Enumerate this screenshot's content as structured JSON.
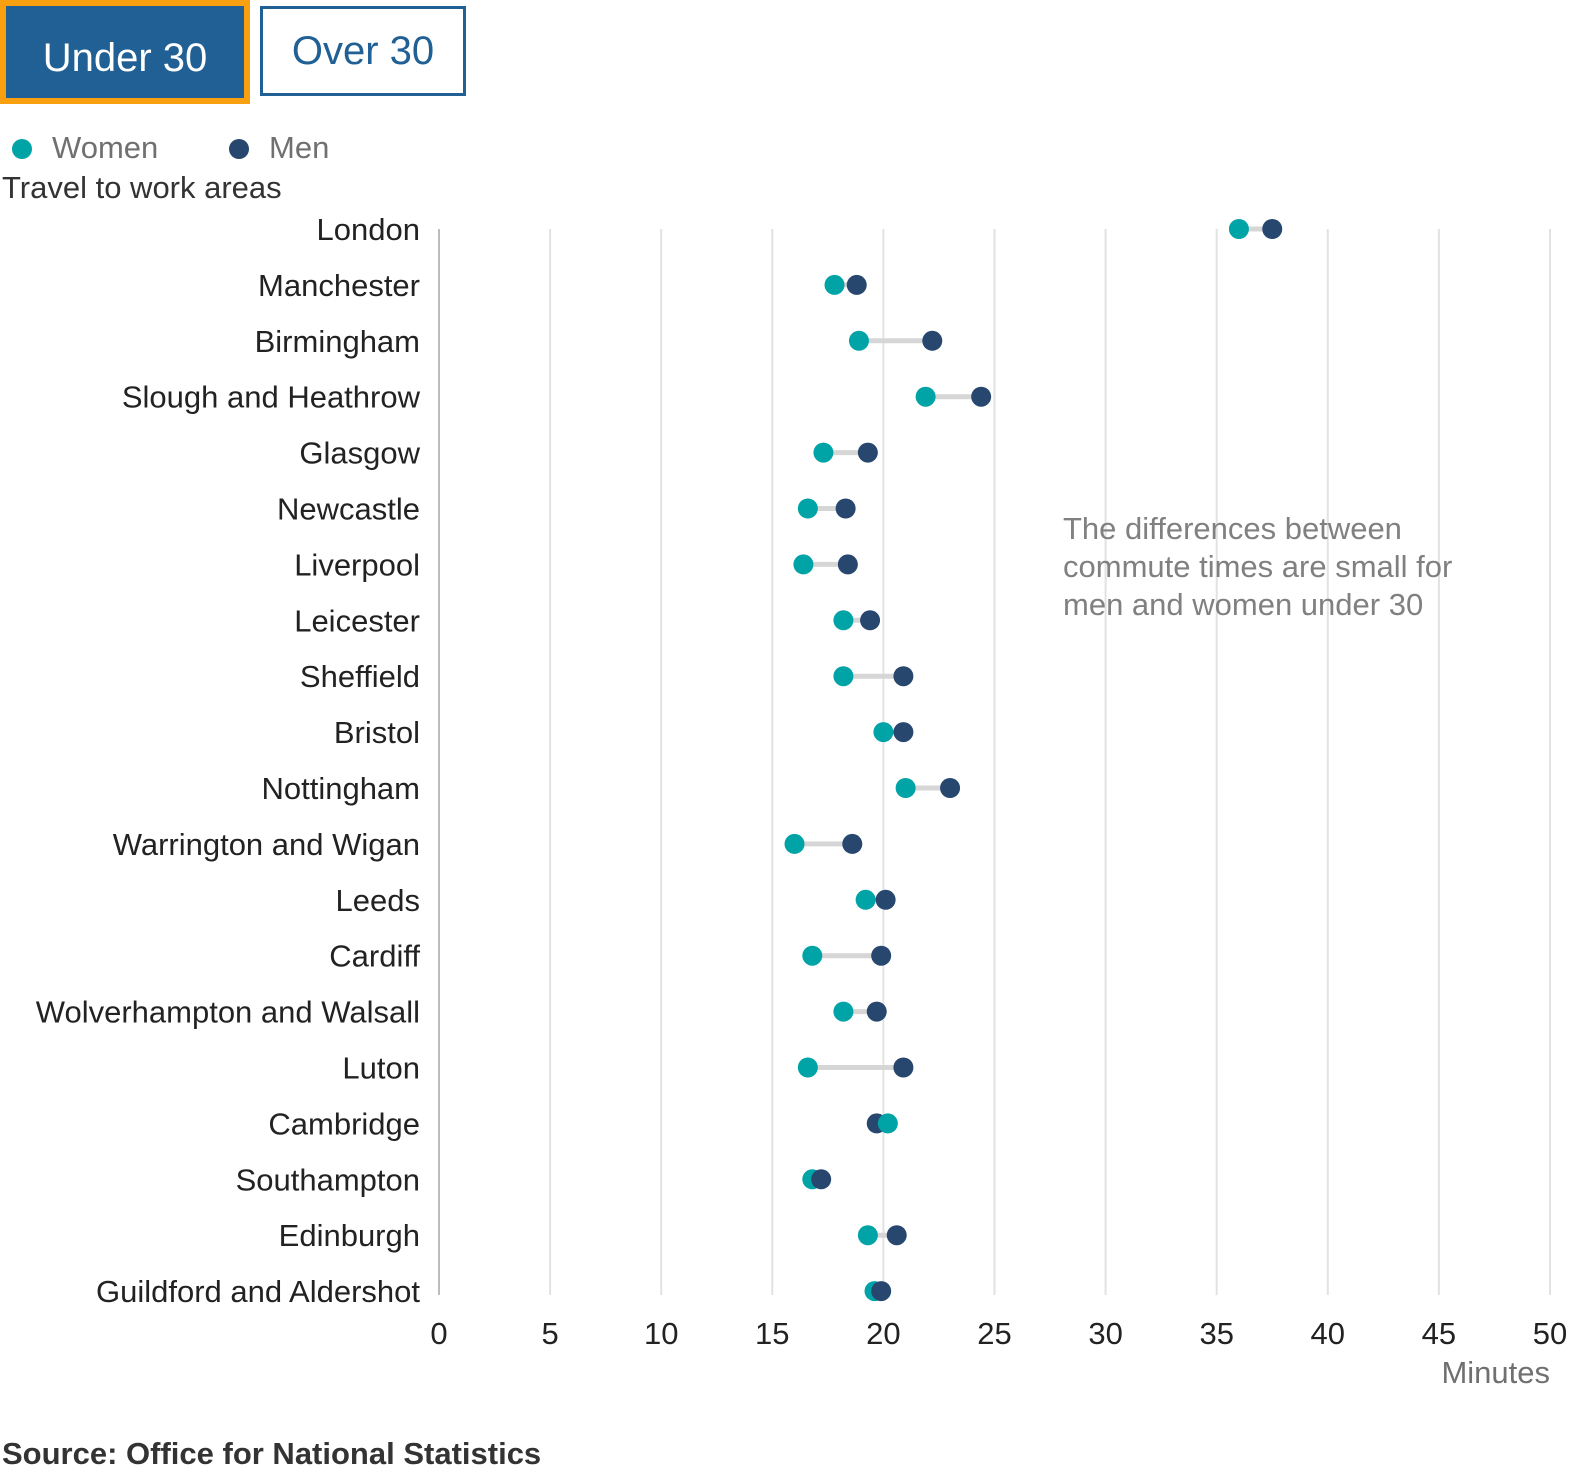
{
  "tabs": [
    {
      "label": "Under 30",
      "active": true
    },
    {
      "label": "Over 30",
      "active": false
    }
  ],
  "legend": [
    {
      "label": "Women",
      "color": "#00a3a6"
    },
    {
      "label": "Men",
      "color": "#27476e"
    }
  ],
  "annotation": [
    "The differences between",
    "commute times are small for",
    "men and women under 30"
  ],
  "source": "Source: Office for National Statistics",
  "chart_data": {
    "type": "dumbbell",
    "ylabel": "Travel to work areas",
    "xlabel": "Minutes",
    "xlim": [
      0,
      50
    ],
    "xticks": [
      0,
      5,
      10,
      15,
      20,
      25,
      30,
      35,
      40,
      45,
      50
    ],
    "grid": true,
    "legend_position": "top-left",
    "categories": [
      "London",
      "Manchester",
      "Birmingham",
      "Slough and Heathrow",
      "Glasgow",
      "Newcastle",
      "Liverpool",
      "Leicester",
      "Sheffield",
      "Bristol",
      "Nottingham",
      "Warrington and Wigan",
      "Leeds",
      "Cardiff",
      "Wolverhampton and Walsall",
      "Luton",
      "Cambridge",
      "Southampton",
      "Edinburgh",
      "Guildford and Aldershot"
    ],
    "series": [
      {
        "name": "Women",
        "color": "#00a3a6",
        "values": [
          36.0,
          17.8,
          18.9,
          21.9,
          17.3,
          16.6,
          16.4,
          18.2,
          18.2,
          20.0,
          21.0,
          16.0,
          19.2,
          16.8,
          18.2,
          16.6,
          20.2,
          16.8,
          19.3,
          19.6
        ]
      },
      {
        "name": "Men",
        "color": "#27476e",
        "values": [
          37.5,
          18.8,
          22.2,
          24.4,
          19.3,
          18.3,
          18.4,
          19.4,
          20.9,
          20.9,
          23.0,
          18.6,
          20.1,
          19.9,
          19.7,
          20.9,
          19.7,
          17.2,
          20.6,
          19.9
        ]
      }
    ]
  }
}
